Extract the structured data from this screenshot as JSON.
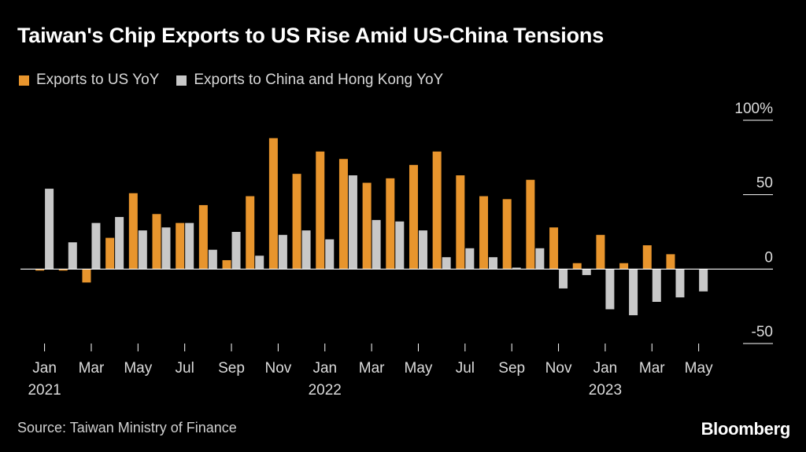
{
  "title": "Taiwan's Chip Exports to US Rise Amid US-China Tensions",
  "source": "Source: Taiwan Ministry of Finance",
  "brand": "Bloomberg",
  "colors": {
    "us": "#e8952d",
    "china": "#c8c8c8",
    "background": "#000000",
    "axis": "#ffffff"
  },
  "chart_data": {
    "type": "bar",
    "title": "Taiwan's Chip Exports to US Rise Amid US-China Tensions",
    "xlabel": "",
    "ylabel": "",
    "ylim": [
      -50,
      100
    ],
    "yticks": [
      {
        "value": 100,
        "label": "100%"
      },
      {
        "value": 50,
        "label": "50"
      },
      {
        "value": 0,
        "label": "0"
      },
      {
        "value": -50,
        "label": "-50"
      }
    ],
    "categories": [
      "Jan 2021",
      "Feb 2021",
      "Mar 2021",
      "Apr 2021",
      "May 2021",
      "Jun 2021",
      "Jul 2021",
      "Aug 2021",
      "Sep 2021",
      "Oct 2021",
      "Nov 2021",
      "Dec 2021",
      "Jan 2022",
      "Feb 2022",
      "Mar 2022",
      "Apr 2022",
      "May 2022",
      "Jun 2022",
      "Jul 2022",
      "Aug 2022",
      "Sep 2022",
      "Oct 2022",
      "Nov 2022",
      "Dec 2022",
      "Jan 2023",
      "Feb 2023",
      "Mar 2023",
      "Apr 2023",
      "May 2023"
    ],
    "xticks": [
      {
        "index": 0,
        "month": "Jan",
        "year": "2021"
      },
      {
        "index": 2,
        "month": "Mar",
        "year": ""
      },
      {
        "index": 4,
        "month": "May",
        "year": ""
      },
      {
        "index": 6,
        "month": "Jul",
        "year": ""
      },
      {
        "index": 8,
        "month": "Sep",
        "year": ""
      },
      {
        "index": 10,
        "month": "Nov",
        "year": ""
      },
      {
        "index": 12,
        "month": "Jan",
        "year": "2022"
      },
      {
        "index": 14,
        "month": "Mar",
        "year": ""
      },
      {
        "index": 16,
        "month": "May",
        "year": ""
      },
      {
        "index": 18,
        "month": "Jul",
        "year": ""
      },
      {
        "index": 20,
        "month": "Sep",
        "year": ""
      },
      {
        "index": 22,
        "month": "Nov",
        "year": ""
      },
      {
        "index": 24,
        "month": "Jan",
        "year": "2023"
      },
      {
        "index": 26,
        "month": "Mar",
        "year": ""
      },
      {
        "index": 28,
        "month": "May",
        "year": ""
      }
    ],
    "series": [
      {
        "name": "Exports to US YoY",
        "key": "us",
        "values": [
          -1,
          -1,
          -9,
          21,
          51,
          37,
          31,
          43,
          6,
          49,
          88,
          64,
          79,
          74,
          58,
          61,
          70,
          79,
          63,
          49,
          47,
          60,
          28,
          4,
          23,
          4,
          16,
          10,
          0
        ]
      },
      {
        "name": "Exports to China and Hong Kong YoY",
        "key": "china",
        "values": [
          54,
          18,
          31,
          35,
          26,
          28,
          31,
          13,
          25,
          9,
          23,
          26,
          20,
          63,
          33,
          32,
          26,
          8,
          14,
          8,
          1,
          14,
          -13,
          -4,
          -27,
          -31,
          -22,
          -19,
          -15
        ]
      }
    ]
  }
}
